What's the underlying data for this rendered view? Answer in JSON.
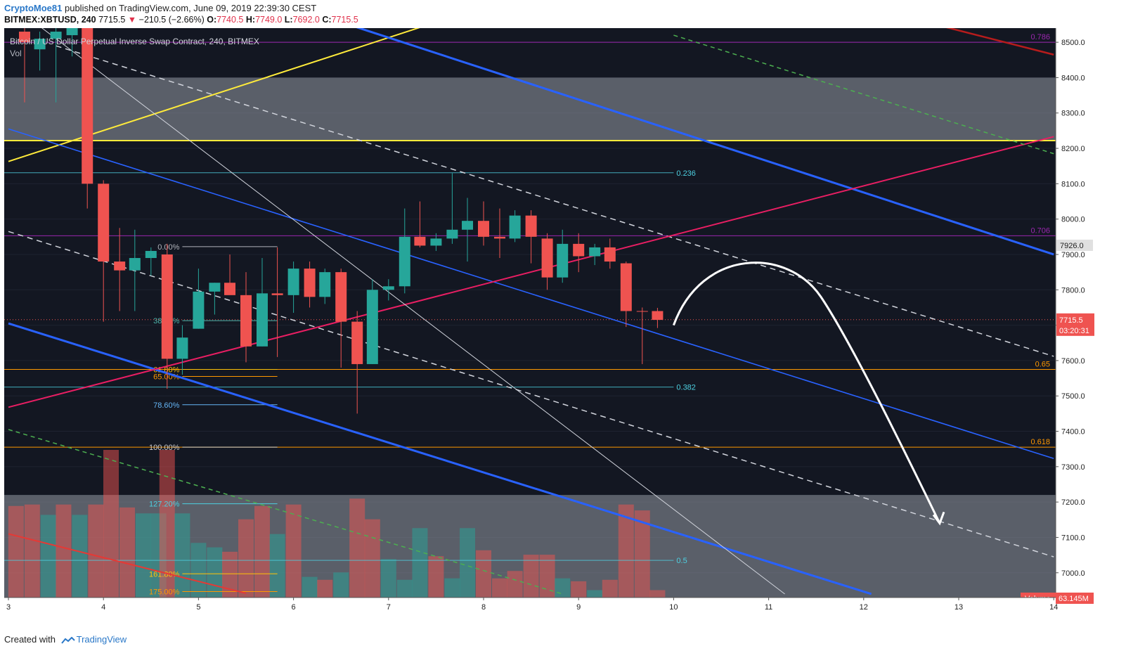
{
  "header": {
    "user": "CryptoMoe81",
    "published": "published on TradingView.com, June 09, 2019 22:39:30 CEST"
  },
  "quote": {
    "symbol": "BITMEX:XBTUSD, 240",
    "last": "7715.5",
    "change": "−210.5 (−2.66%)",
    "o_label": "O:",
    "o": "7740.5",
    "h_label": "H:",
    "h": "7749.0",
    "l_label": "L:",
    "l": "7692.0",
    "c_label": "C:",
    "c": "7715.5"
  },
  "footer": {
    "created_with": "Created with",
    "brand": "TradingView"
  },
  "colors": {
    "background": "#131722",
    "up": "#26a69a",
    "down": "#ef5350",
    "grid": "#363c4e",
    "axis_text": "#d1d4dc",
    "zone": "#8a8f9a",
    "price_tag": "#ef5350",
    "arrow": "#ffffff"
  },
  "chart_data": {
    "type": "candlestick",
    "title": "Bitcoin / US Dollar Perpetual Inverse Swap Contract, 240, BITMEX",
    "volume_label": "Vol",
    "ylim": [
      6930,
      8540
    ],
    "xlim": [
      3.0,
      14.0
    ],
    "x_ticks": [
      3,
      4,
      5,
      6,
      7,
      8,
      9,
      10,
      11,
      12,
      13,
      14
    ],
    "x_tick_labels": [
      "3",
      "4",
      "5",
      "6",
      "7",
      "8",
      "9",
      "10",
      "11",
      "12",
      "13",
      "14"
    ],
    "y_ticks": [
      7000,
      7100,
      7200,
      7300,
      7400,
      7500,
      7600,
      7700,
      7800,
      7900,
      8000,
      8100,
      8200,
      8300,
      8400,
      8500
    ],
    "y_tick_labels": [
      "7000.0",
      "7100.0",
      "7200.0",
      "7300.0",
      "7400.0",
      "7500.0",
      "7600.0",
      "7700.0",
      "7800.0",
      "7900.0",
      "8000.0",
      "8100.0",
      "8200.0",
      "8300.0",
      "8400.0",
      "8500.0"
    ],
    "candles": [
      {
        "x": 3.17,
        "o": 8530,
        "h": 8540,
        "l": 8330,
        "c": 8500
      },
      {
        "x": 3.33,
        "o": 8480,
        "h": 8530,
        "l": 8420,
        "c": 8510
      },
      {
        "x": 3.5,
        "o": 8510,
        "h": 8540,
        "l": 8330,
        "c": 8530
      },
      {
        "x": 3.67,
        "o": 8520,
        "h": 8540,
        "l": 8460,
        "c": 8540
      },
      {
        "x": 3.83,
        "o": 8540,
        "h": 8545,
        "l": 8030,
        "c": 8100
      },
      {
        "x": 4.0,
        "o": 8100,
        "h": 8110,
        "l": 7710,
        "c": 7880
      },
      {
        "x": 4.17,
        "o": 7880,
        "h": 7975,
        "l": 7740,
        "c": 7855
      },
      {
        "x": 4.33,
        "o": 7855,
        "h": 7970,
        "l": 7740,
        "c": 7890
      },
      {
        "x": 4.5,
        "o": 7890,
        "h": 7920,
        "l": 7840,
        "c": 7910
      },
      {
        "x": 4.67,
        "o": 7900,
        "h": 7930,
        "l": 7520,
        "c": 7605
      },
      {
        "x": 4.83,
        "o": 7605,
        "h": 7700,
        "l": 7560,
        "c": 7665
      },
      {
        "x": 5.0,
        "o": 7690,
        "h": 7860,
        "l": 7690,
        "c": 7795
      },
      {
        "x": 5.17,
        "o": 7795,
        "h": 7820,
        "l": 7730,
        "c": 7820
      },
      {
        "x": 5.33,
        "o": 7820,
        "h": 7900,
        "l": 7790,
        "c": 7785
      },
      {
        "x": 5.5,
        "o": 7785,
        "h": 7850,
        "l": 7595,
        "c": 7640
      },
      {
        "x": 5.67,
        "o": 7640,
        "h": 7890,
        "l": 7640,
        "c": 7790
      },
      {
        "x": 5.83,
        "o": 7790,
        "h": 7920,
        "l": 7610,
        "c": 7785
      },
      {
        "x": 6.0,
        "o": 7785,
        "h": 7880,
        "l": 7735,
        "c": 7860
      },
      {
        "x": 6.17,
        "o": 7860,
        "h": 7880,
        "l": 7750,
        "c": 7780
      },
      {
        "x": 6.33,
        "o": 7780,
        "h": 7860,
        "l": 7760,
        "c": 7850
      },
      {
        "x": 6.5,
        "o": 7850,
        "h": 7860,
        "l": 7580,
        "c": 7710
      },
      {
        "x": 6.67,
        "o": 7710,
        "h": 7740,
        "l": 7450,
        "c": 7590
      },
      {
        "x": 6.83,
        "o": 7590,
        "h": 7830,
        "l": 7590,
        "c": 7800
      },
      {
        "x": 7.0,
        "o": 7800,
        "h": 7830,
        "l": 7770,
        "c": 7810
      },
      {
        "x": 7.17,
        "o": 7810,
        "h": 8030,
        "l": 7790,
        "c": 7950
      },
      {
        "x": 7.33,
        "o": 7950,
        "h": 8050,
        "l": 7920,
        "c": 7925
      },
      {
        "x": 7.5,
        "o": 7925,
        "h": 7960,
        "l": 7910,
        "c": 7945
      },
      {
        "x": 7.67,
        "o": 7945,
        "h": 8130,
        "l": 7930,
        "c": 7970
      },
      {
        "x": 7.83,
        "o": 7970,
        "h": 8060,
        "l": 7880,
        "c": 7995
      },
      {
        "x": 8.0,
        "o": 7995,
        "h": 8050,
        "l": 7925,
        "c": 7950
      },
      {
        "x": 8.17,
        "o": 7950,
        "h": 8030,
        "l": 7890,
        "c": 7945
      },
      {
        "x": 8.33,
        "o": 7945,
        "h": 8025,
        "l": 7935,
        "c": 8010
      },
      {
        "x": 8.5,
        "o": 8010,
        "h": 8025,
        "l": 7875,
        "c": 7950
      },
      {
        "x": 8.67,
        "o": 7945,
        "h": 7960,
        "l": 7800,
        "c": 7835
      },
      {
        "x": 8.83,
        "o": 7835,
        "h": 7970,
        "l": 7820,
        "c": 7930
      },
      {
        "x": 9.0,
        "o": 7930,
        "h": 7960,
        "l": 7850,
        "c": 7895
      },
      {
        "x": 9.17,
        "o": 7895,
        "h": 7930,
        "l": 7870,
        "c": 7920
      },
      {
        "x": 9.33,
        "o": 7920,
        "h": 7945,
        "l": 7860,
        "c": 7880
      },
      {
        "x": 9.5,
        "o": 7875,
        "h": 7880,
        "l": 7695,
        "c": 7740
      },
      {
        "x": 9.67,
        "o": 7740,
        "h": 7750,
        "l": 7590,
        "c": 7738
      },
      {
        "x": 9.83,
        "o": 7740,
        "h": 7749,
        "l": 7692,
        "c": 7715
      }
    ],
    "volume": [
      {
        "x": 3.08,
        "v": 0.62,
        "dir": "down"
      },
      {
        "x": 3.25,
        "v": 0.63,
        "dir": "down"
      },
      {
        "x": 3.42,
        "v": 0.56,
        "dir": "up"
      },
      {
        "x": 3.58,
        "v": 0.63,
        "dir": "down"
      },
      {
        "x": 3.75,
        "v": 0.56,
        "dir": "up"
      },
      {
        "x": 3.92,
        "v": 0.63,
        "dir": "down"
      },
      {
        "x": 4.08,
        "v": 1.0,
        "dir": "down"
      },
      {
        "x": 4.25,
        "v": 0.61,
        "dir": "down"
      },
      {
        "x": 4.42,
        "v": 0.57,
        "dir": "up"
      },
      {
        "x": 4.58,
        "v": 0.57,
        "dir": "up"
      },
      {
        "x": 4.67,
        "v": 1.0,
        "dir": "down"
      },
      {
        "x": 4.83,
        "v": 0.57,
        "dir": "up"
      },
      {
        "x": 5.0,
        "v": 0.37,
        "dir": "up"
      },
      {
        "x": 5.17,
        "v": 0.34,
        "dir": "up"
      },
      {
        "x": 5.33,
        "v": 0.31,
        "dir": "down"
      },
      {
        "x": 5.5,
        "v": 0.53,
        "dir": "down"
      },
      {
        "x": 5.67,
        "v": 0.62,
        "dir": "down"
      },
      {
        "x": 5.83,
        "v": 0.43,
        "dir": "up"
      },
      {
        "x": 6.0,
        "v": 0.63,
        "dir": "down"
      },
      {
        "x": 6.17,
        "v": 0.14,
        "dir": "up"
      },
      {
        "x": 6.33,
        "v": 0.12,
        "dir": "down"
      },
      {
        "x": 6.5,
        "v": 0.17,
        "dir": "up"
      },
      {
        "x": 6.67,
        "v": 0.67,
        "dir": "down"
      },
      {
        "x": 6.83,
        "v": 0.53,
        "dir": "down"
      },
      {
        "x": 7.0,
        "v": 0.26,
        "dir": "up"
      },
      {
        "x": 7.17,
        "v": 0.12,
        "dir": "up"
      },
      {
        "x": 7.33,
        "v": 0.47,
        "dir": "up"
      },
      {
        "x": 7.5,
        "v": 0.28,
        "dir": "down"
      },
      {
        "x": 7.67,
        "v": 0.13,
        "dir": "up"
      },
      {
        "x": 7.83,
        "v": 0.47,
        "dir": "up"
      },
      {
        "x": 8.0,
        "v": 0.32,
        "dir": "down"
      },
      {
        "x": 8.17,
        "v": 0.13,
        "dir": "down"
      },
      {
        "x": 8.33,
        "v": 0.18,
        "dir": "down"
      },
      {
        "x": 8.5,
        "v": 0.29,
        "dir": "down"
      },
      {
        "x": 8.67,
        "v": 0.29,
        "dir": "down"
      },
      {
        "x": 8.83,
        "v": 0.13,
        "dir": "up"
      },
      {
        "x": 9.0,
        "v": 0.11,
        "dir": "down"
      },
      {
        "x": 9.17,
        "v": 0.05,
        "dir": "up"
      },
      {
        "x": 9.33,
        "v": 0.12,
        "dir": "down"
      },
      {
        "x": 9.5,
        "v": 0.63,
        "dir": "down"
      },
      {
        "x": 9.67,
        "v": 0.59,
        "dir": "down"
      },
      {
        "x": 9.83,
        "v": 0.05,
        "dir": "down"
      }
    ],
    "zones": [
      {
        "y1": 8220,
        "y2": 8400,
        "color": "#8a8f9a"
      },
      {
        "y1": 6930,
        "y2": 7220,
        "color": "#8a8f9a"
      }
    ],
    "hlines": [
      {
        "y": 8500,
        "color": "#9c27b0",
        "label": "0.786",
        "label_x": 14.0,
        "label_color": "#9c27b0"
      },
      {
        "y": 8222,
        "color": "#ffeb3b",
        "label": "",
        "label_x": 14.0,
        "label_color": "#ffeb3b"
      },
      {
        "y": 7953,
        "color": "#9c27b0",
        "label": "0.706",
        "label_x": 14.0,
        "label_color": "#9c27b0"
      },
      {
        "y": 7575,
        "color": "#ff9800",
        "label": "0.65",
        "label_x": 14.0,
        "label_color": "#ff9800"
      },
      {
        "y": 7355,
        "color": "#ff9800",
        "label": "0.618",
        "label_x": 14.0,
        "label_color": "#ff9800"
      }
    ],
    "fib_right": [
      {
        "y": 8131,
        "label": "0.236",
        "color": "#4dd0e1"
      },
      {
        "y": 7525,
        "label": "0.382",
        "color": "#4dd0e1"
      },
      {
        "y": 7035,
        "label": "0.5",
        "color": "#4dd0e1"
      }
    ],
    "fib_left": [
      {
        "y": 7922,
        "label": "0.00%",
        "color": "#b0b3bb"
      },
      {
        "y": 7713,
        "label": "38.20%",
        "color": "#4db6ac"
      },
      {
        "y": 7575,
        "label": "61.80%",
        "color": "#ffc107"
      },
      {
        "y": 7555,
        "label": "65.00%",
        "color": "#ff9800"
      },
      {
        "y": 7475,
        "label": "78.60%",
        "color": "#64b5f6"
      },
      {
        "y": 7355,
        "label": "100.00%",
        "color": "#cccccc"
      },
      {
        "y": 7195,
        "label": "127.20%",
        "color": "#4dd0e1"
      },
      {
        "y": 6997,
        "label": "161.80%",
        "color": "#ffc107"
      },
      {
        "y": 6947,
        "label": "175.00%",
        "color": "#ff9800"
      }
    ],
    "trendlines": [
      {
        "x1": 3.0,
        "y1": 8163,
        "x2": 7.33,
        "y2": 8542,
        "color": "#ffeb3b",
        "width": 2,
        "dash": ""
      },
      {
        "x1": 3.0,
        "y1": 8255,
        "x2": 14.0,
        "y2": 7323,
        "color": "#2962ff",
        "width": 1.6,
        "dash": ""
      },
      {
        "x1": 3.0,
        "y1": 7705,
        "x2": 12.08,
        "y2": 6940,
        "color": "#2962ff",
        "width": 3,
        "dash": ""
      },
      {
        "x1": 6.58,
        "y1": 8550,
        "x2": 14.0,
        "y2": 7900,
        "color": "#2962ff",
        "width": 3,
        "dash": ""
      },
      {
        "x1": 3.0,
        "y1": 7965,
        "x2": 14.0,
        "y2": 7045,
        "color": "#d1d4dc",
        "width": 1.5,
        "dash": "8,6"
      },
      {
        "x1": 3.5,
        "y1": 8490,
        "x2": 14.0,
        "y2": 7612,
        "color": "#d1d4dc",
        "width": 1.5,
        "dash": "8,6"
      },
      {
        "x1": 3.0,
        "y1": 7468,
        "x2": 14.0,
        "y2": 8233,
        "color": "#e91e63",
        "width": 2,
        "dash": ""
      },
      {
        "x1": 3.0,
        "y1": 7405,
        "x2": 8.83,
        "y2": 6940,
        "color": "#4caf50",
        "width": 1.5,
        "dash": "6,5"
      },
      {
        "x1": 10.0,
        "y1": 8520,
        "x2": 14.0,
        "y2": 8185,
        "color": "#4caf50",
        "width": 1.5,
        "dash": "6,5"
      },
      {
        "x1": 3.33,
        "y1": 8545,
        "x2": 11.17,
        "y2": 6940,
        "color": "#d1d4dc",
        "width": 1,
        "dash": ""
      },
      {
        "x1": 3.0,
        "y1": 7110,
        "x2": 5.5,
        "y2": 6942,
        "color": "#e53935",
        "width": 2,
        "dash": ""
      },
      {
        "x1": 12.83,
        "y1": 8545,
        "x2": 14.0,
        "y2": 8465,
        "color": "#b71c1c",
        "width": 2.5,
        "dash": ""
      }
    ],
    "price_line": {
      "y": 7715.5,
      "color": "#ef5350"
    },
    "price_label": "7715.5",
    "countdown": "03:20:31",
    "marker_price": "7926.0",
    "volume_axis_label": "Volume",
    "volume_axis_value": "63.145M"
  }
}
